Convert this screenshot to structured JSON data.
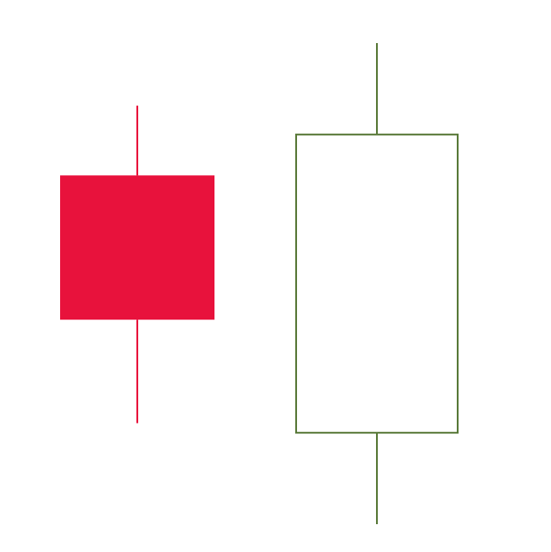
{
  "chart_data": {
    "type": "candlestick",
    "title": "",
    "xlabel": "",
    "ylabel": "",
    "grid": false,
    "legend": "none",
    "candles": [
      {
        "open": 72.5,
        "close": 42.5,
        "high": 87.0,
        "low": 21.0,
        "direction": "down",
        "color": "#E8123C",
        "filled": true
      },
      {
        "open": 19.0,
        "close": 81.0,
        "high": 100.0,
        "low": 0.0,
        "direction": "up",
        "color": "#5A7A3A",
        "filled": false
      }
    ],
    "ylim": [
      0,
      100
    ]
  }
}
